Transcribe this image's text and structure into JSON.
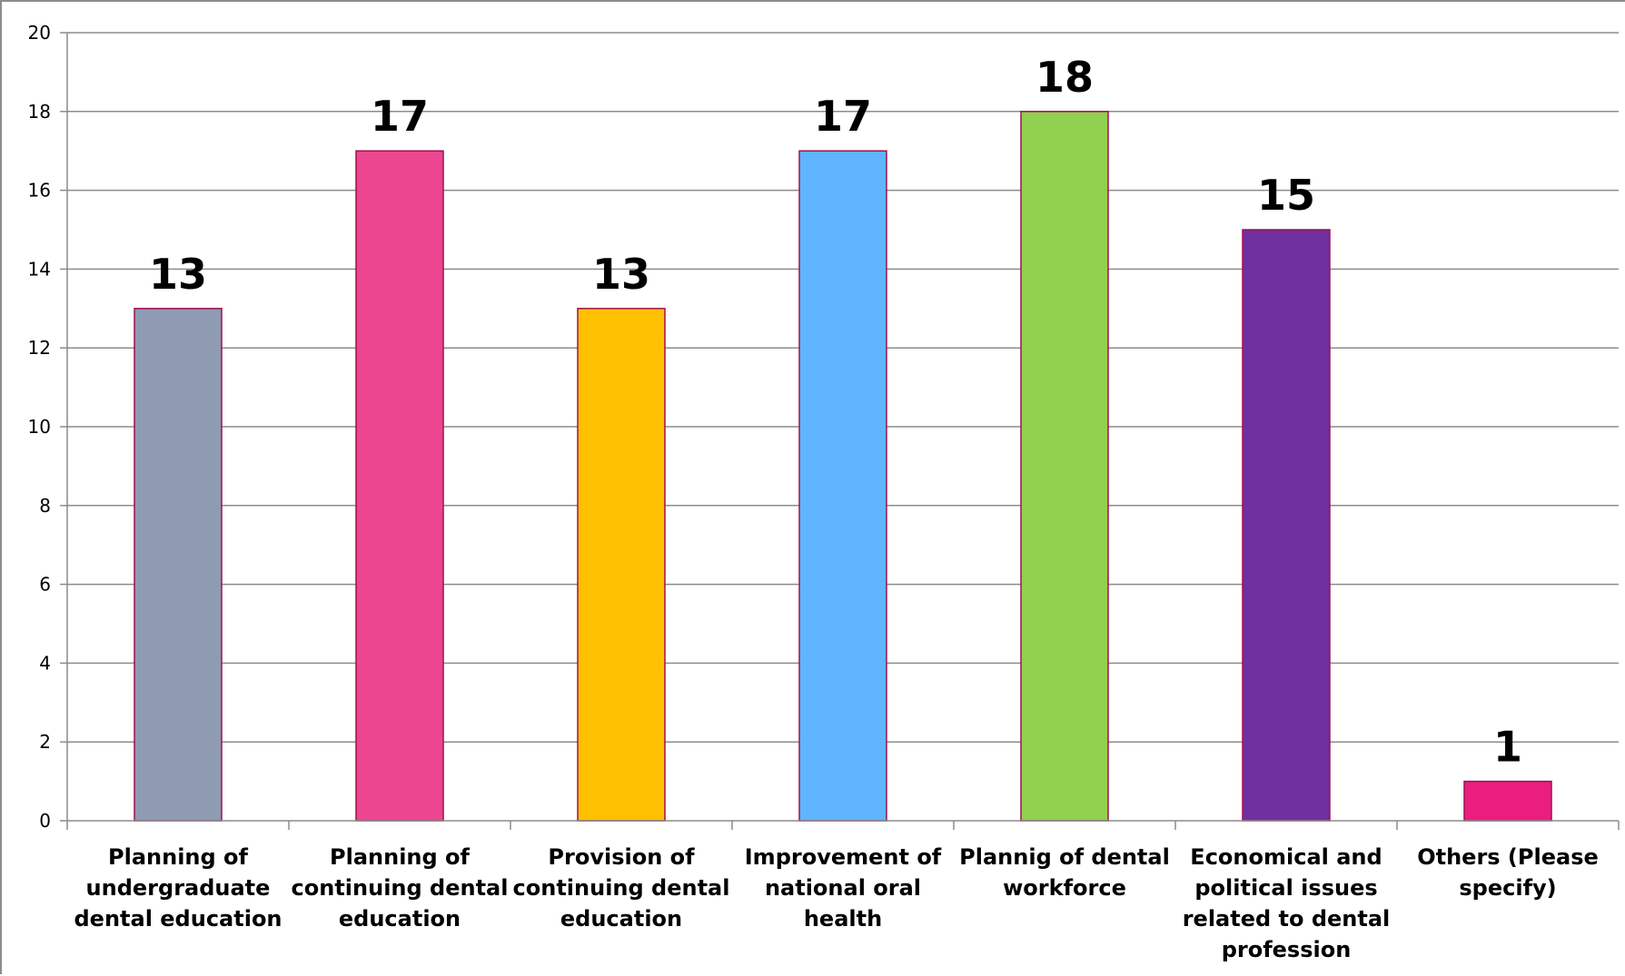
{
  "chart_data": {
    "type": "bar",
    "title": "",
    "xlabel": "",
    "ylabel": "",
    "categories": [
      "Planning of undergraduate dental education",
      "Planning of continuing dental education",
      "Provision of continuing dental education",
      "Improvement of national oral health",
      "Plannig of dental workforce",
      "Economical and political issues related to dental profession",
      "Others (Please specify)"
    ],
    "category_lines": [
      [
        "Planning of",
        "undergraduate",
        "dental education"
      ],
      [
        "Planning of",
        "continuing dental",
        "education"
      ],
      [
        "Provision of",
        "continuing dental",
        "education"
      ],
      [
        "Improvement of",
        "national oral",
        "health"
      ],
      [
        "Plannig of dental",
        "workforce"
      ],
      [
        "Economical and",
        "political issues",
        "related to dental",
        "profession"
      ],
      [
        "Others (Please",
        "specify)"
      ]
    ],
    "values": [
      13,
      17,
      13,
      17,
      18,
      15,
      1
    ],
    "data_labels": [
      "13",
      "17",
      "13",
      "17",
      "18",
      "15",
      "1"
    ],
    "colors": [
      "#8E9BB3",
      "#EC4690",
      "#FFC000",
      "#61B4FF",
      "#92D050",
      "#7030A0",
      "#E91E7F"
    ],
    "bar_outline_color": "#A0104E",
    "ylim": [
      0,
      20
    ],
    "yticks": [
      0,
      2,
      4,
      6,
      8,
      10,
      12,
      14,
      16,
      18,
      20
    ],
    "ytick_labels": [
      "0",
      "2",
      "4",
      "6",
      "8",
      "10",
      "12",
      "14",
      "16",
      "18",
      "20"
    ],
    "grid": true,
    "legend": "none"
  }
}
